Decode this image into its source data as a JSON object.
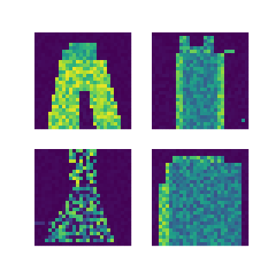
{
  "grid": {
    "rows": 2,
    "columns": 2
  }
}
